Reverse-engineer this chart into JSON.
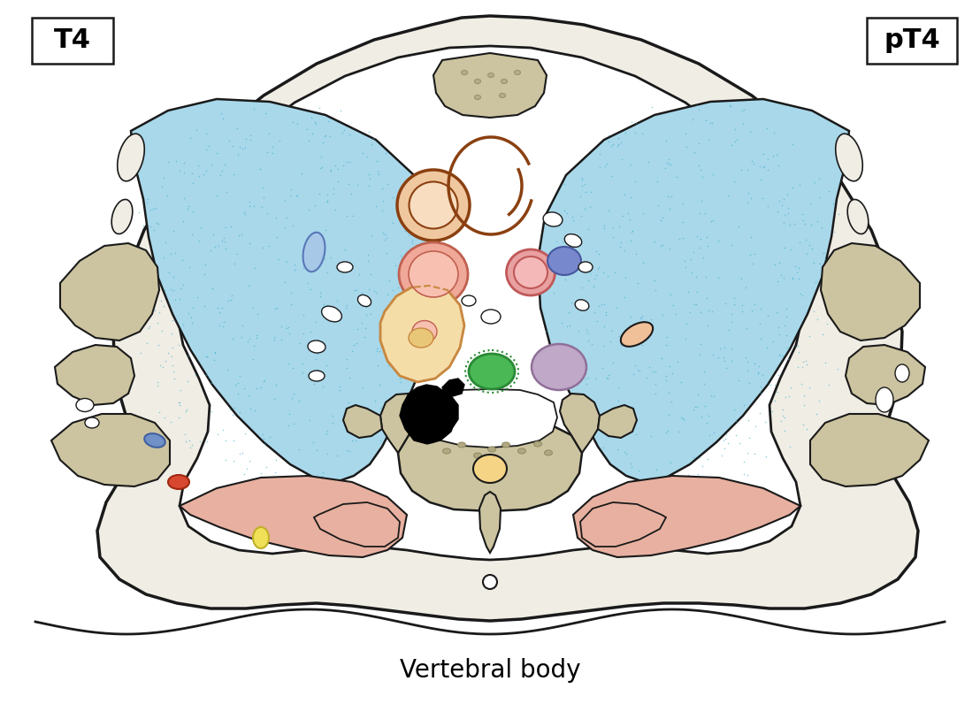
{
  "title": "Vertebral body",
  "label_T4": "T4",
  "label_pT4": "pT4",
  "bg_color": "#ffffff",
  "lung_color": "#a8d8ea",
  "lung_dot_color": "#3aaccc",
  "bone_color": "#ccc4a0",
  "outline_color": "#1a1a1a",
  "pink_muscle": "#e8afa0",
  "skin_fill": "#f0ede5"
}
